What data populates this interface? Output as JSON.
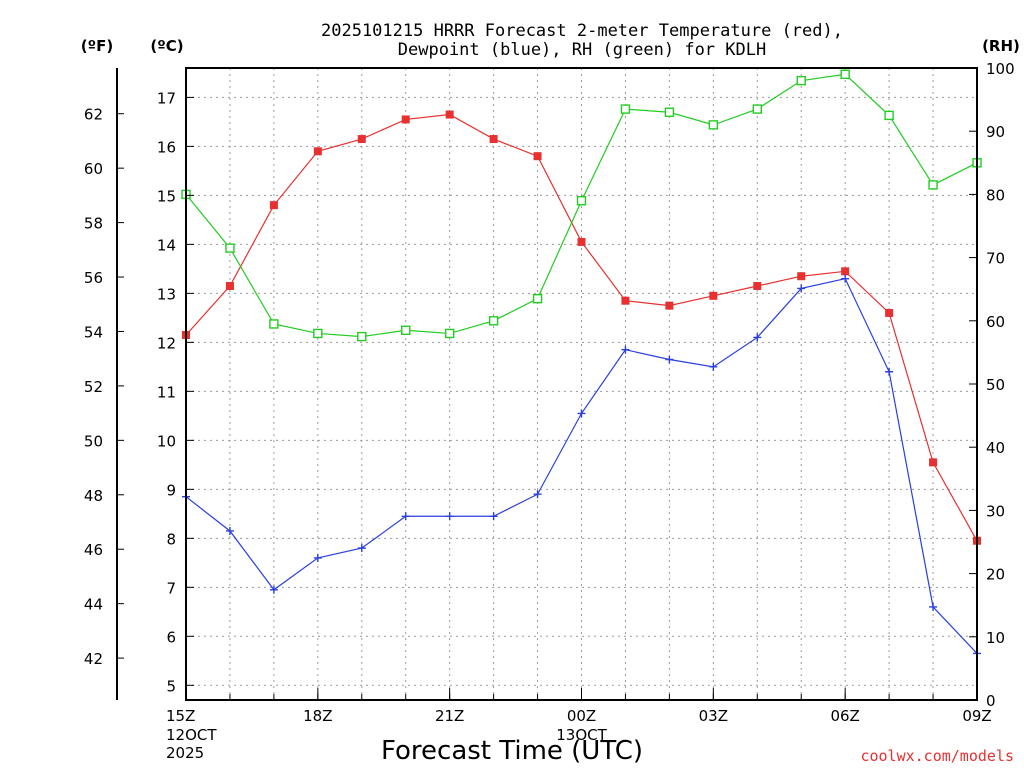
{
  "chart_data": {
    "type": "line",
    "title_line1": "2025101215 HRRR Forecast 2-meter Temperature (red),",
    "title_line2": "Dewpoint (blue), RH (green) for KDLH",
    "xlabel": "Forecast Time (UTC)",
    "credit": "coolwx.com/models",
    "unit_f": "(ºF)",
    "unit_c": "(ºC)",
    "unit_rh": "(RH)",
    "hours": [
      0,
      1,
      2,
      3,
      4,
      5,
      6,
      7,
      8,
      9,
      10,
      11,
      12,
      13,
      14,
      15,
      16,
      17,
      18
    ],
    "x_ticks": [
      {
        "hour": 0,
        "label": "15Z",
        "label2": "12OCT",
        "label3": "2025"
      },
      {
        "hour": 3,
        "label": "18Z"
      },
      {
        "hour": 6,
        "label": "21Z"
      },
      {
        "hour": 9,
        "label": "00Z",
        "label2": "13OCT"
      },
      {
        "hour": 12,
        "label": "03Z"
      },
      {
        "hour": 15,
        "label": "06Z"
      },
      {
        "hour": 18,
        "label": "09Z"
      }
    ],
    "c_range": [
      4.7,
      17.6
    ],
    "c_ticks": [
      5,
      6,
      7,
      8,
      9,
      10,
      11,
      12,
      13,
      14,
      15,
      16,
      17
    ],
    "f_ticks": [
      42,
      44,
      46,
      48,
      50,
      52,
      54,
      56,
      58,
      60,
      62
    ],
    "rh_range": [
      0,
      100
    ],
    "rh_ticks": [
      0,
      10,
      20,
      30,
      40,
      50,
      60,
      70,
      80,
      90,
      100
    ],
    "series": [
      {
        "name": "Temperature",
        "units": "C",
        "color": "#e83030",
        "marker": "filled-square",
        "values": [
          12.15,
          13.15,
          14.8,
          15.9,
          16.15,
          16.55,
          16.65,
          16.15,
          15.8,
          14.05,
          12.85,
          12.75,
          12.95,
          13.15,
          13.35,
          13.45,
          12.6,
          9.55,
          7.95
        ]
      },
      {
        "name": "Dewpoint",
        "units": "C",
        "color": "#2a3fe0",
        "marker": "plus",
        "values": [
          8.85,
          8.15,
          6.95,
          7.6,
          7.8,
          8.45,
          8.45,
          8.45,
          8.9,
          10.55,
          11.85,
          11.65,
          11.5,
          12.1,
          13.1,
          13.3,
          11.4,
          6.6,
          5.65
        ]
      },
      {
        "name": "RH",
        "units": "%",
        "color": "#22cc22",
        "marker": "open-square",
        "values": [
          80,
          71.5,
          59.5,
          58,
          57.5,
          58.5,
          58,
          60,
          63.5,
          79,
          93.5,
          93,
          91,
          93.5,
          98,
          99,
          92.5,
          81.5,
          85
        ]
      }
    ]
  }
}
